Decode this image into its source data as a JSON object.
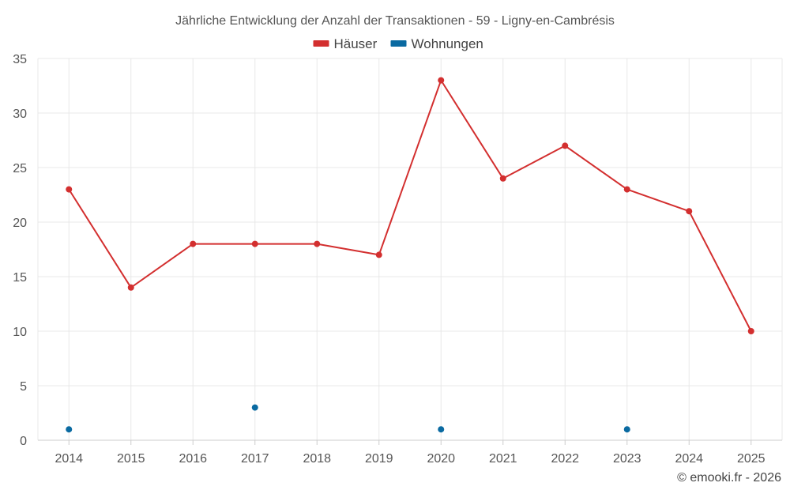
{
  "chart_data": {
    "type": "line",
    "title": "Jährliche Entwicklung der Anzahl der Transaktionen - 59 - Ligny-en-Cambrésis",
    "categories": [
      "2014",
      "2015",
      "2016",
      "2017",
      "2018",
      "2019",
      "2020",
      "2021",
      "2022",
      "2023",
      "2024",
      "2025"
    ],
    "series": [
      {
        "name": "Häuser",
        "color": "#d32f2f",
        "mode": "line",
        "values": [
          23,
          14,
          18,
          18,
          18,
          17,
          33,
          24,
          27,
          23,
          21,
          10
        ]
      },
      {
        "name": "Wohnungen",
        "color": "#0a6aa1",
        "mode": "points",
        "values": [
          1,
          null,
          null,
          3,
          null,
          null,
          1,
          null,
          null,
          1,
          null,
          null
        ]
      }
    ],
    "ylim": [
      0,
      35
    ],
    "yticks": [
      0,
      5,
      10,
      15,
      20,
      25,
      30,
      35
    ],
    "grid": true,
    "legend_position": "top-center"
  },
  "credit": "© emooki.fr - 2026"
}
